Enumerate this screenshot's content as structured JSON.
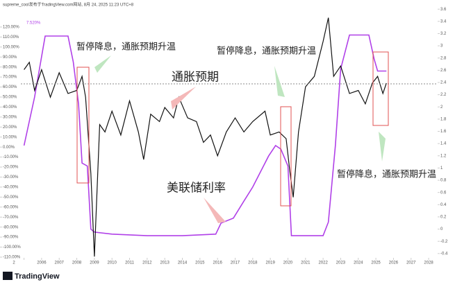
{
  "header": "supreme_cool发布于TradingView.com网站, 8月 24, 2025 11:23 UTC+8",
  "logo": "TradingView",
  "chart_data": {
    "type": "line",
    "current_label": "7.520%",
    "annotations": [
      "暂停降息，通胀预期升温",
      "暂停降息，通胀预期升温",
      "暂停降息，通胀预期升温"
    ],
    "xlim": [
      2004.82,
      2028.51
    ],
    "xticks": [
      {
        "value": 2005,
        "label": "2"
      },
      2006,
      2007,
      2008,
      2009,
      2010,
      2011,
      2012,
      2013,
      2014,
      2015,
      2016,
      2017,
      2018,
      2019,
      2020,
      2021,
      2022,
      2023,
      2024,
      2025,
      2026,
      2027,
      2028
    ],
    "ylim": [
      -110.7,
      147
    ],
    "yticks": [
      {
        "value": 120,
        "label": "120.00%"
      },
      {
        "value": 110,
        "label": "110.00%"
      },
      {
        "value": 100,
        "label": "100.00%"
      },
      {
        "value": 90,
        "label": "90.00%"
      },
      {
        "value": 80,
        "label": "80.00%"
      },
      {
        "value": 70,
        "label": "70.00%"
      },
      {
        "value": 60,
        "label": "60.00%"
      },
      {
        "value": 50,
        "label": "50.00%"
      },
      {
        "value": 40,
        "label": "40.00%"
      },
      {
        "value": 30,
        "label": "30.00%"
      },
      {
        "value": 20,
        "label": "20.00%"
      },
      {
        "value": 10,
        "label": "10.00%"
      },
      {
        "value": 0,
        "label": "0.00%"
      },
      {
        "value": -10,
        "label": "-10.00%"
      },
      {
        "value": -20,
        "label": "-20.00%"
      },
      {
        "value": -30,
        "label": "-30.00%"
      },
      {
        "value": -40,
        "label": "-40.00%"
      },
      {
        "value": -50,
        "label": "-50.00%"
      },
      {
        "value": -60,
        "label": "-60.00%"
      },
      {
        "value": -70,
        "label": "-70.00%"
      },
      {
        "value": -80,
        "label": "-80.00%"
      },
      {
        "value": -90,
        "label": "-90.00%"
      },
      {
        "value": -100,
        "label": "-100.00%"
      },
      {
        "value": -110,
        "label": "-110.00%"
      }
    ],
    "y2lim": [
      -0.47,
      3.75
    ],
    "y2ticks": [
      3.6,
      3.4,
      3.2,
      3,
      2.8,
      2.6,
      2.4,
      2.2,
      2,
      1.8,
      1.6,
      1.4,
      1.2,
      1,
      0.8,
      0.6,
      0.4,
      0.2,
      0,
      -0.2,
      -0.4
    ],
    "series": [
      {
        "name": "美联储利率",
        "color": "#b040e8",
        "axis": "y",
        "x": [
          2005.0,
          2005.6,
          2006.2,
          2007.5,
          2007.8,
          2008.1,
          2008.3,
          2008.6,
          2008.8,
          2009.0,
          2010,
          2012,
          2014,
          2015.9,
          2016.2,
          2016.9,
          2017.5,
          2018,
          2018.9,
          2019.3,
          2019.6,
          2020.0,
          2020.2,
          2022.0,
          2022.3,
          2022.7,
          2023.0,
          2023.5,
          2024.6,
          2024.9,
          2025.1,
          2025.6
        ],
        "values": [
          1.5,
          50,
          111,
          111,
          85,
          43,
          -16,
          -19,
          -82,
          -85,
          -87,
          -88.6,
          -88.6,
          -87,
          -76,
          -71,
          -54,
          -40,
          -9,
          1.5,
          -2,
          -19,
          -88.6,
          -88.6,
          -75,
          1.5,
          78,
          112,
          112,
          88,
          76,
          76
        ]
      },
      {
        "name": "通胀预期",
        "color": "#111111",
        "axis": "y2",
        "x": [
          2005.0,
          2005.3,
          2005.6,
          2006.0,
          2006.5,
          2007.0,
          2007.5,
          2008.0,
          2008.3,
          2008.5,
          2008.8,
          2009.0,
          2009.3,
          2009.6,
          2010.0,
          2010.5,
          2011.0,
          2011.5,
          2011.8,
          2012.2,
          2012.7,
          2013.0,
          2013.5,
          2013.8,
          2014.3,
          2014.8,
          2015.2,
          2015.6,
          2016.0,
          2016.5,
          2017.0,
          2017.5,
          2018.0,
          2018.7,
          2019.0,
          2019.5,
          2019.9,
          2020.1,
          2020.3,
          2020.6,
          2021.0,
          2021.5,
          2022.0,
          2022.3,
          2022.6,
          2023.0,
          2023.5,
          2024.0,
          2024.4,
          2024.8,
          2025.1,
          2025.4,
          2025.6
        ],
        "values": [
          2.61,
          2.73,
          2.27,
          2.61,
          2.16,
          2.56,
          2.22,
          2.27,
          2.5,
          2.16,
          0.91,
          -0.45,
          1.71,
          1.59,
          1.93,
          1.54,
          2.1,
          1.59,
          1.14,
          1.88,
          1.76,
          1.99,
          1.82,
          2.16,
          1.82,
          1.76,
          1.42,
          1.54,
          1.2,
          1.59,
          1.82,
          1.59,
          1.76,
          1.93,
          1.54,
          1.59,
          1.48,
          0.97,
          0.52,
          1.59,
          2.33,
          2.5,
          3.07,
          3.46,
          2.5,
          2.67,
          2.22,
          2.27,
          2.05,
          2.39,
          2.5,
          2.22,
          2.39
        ]
      }
    ]
  }
}
